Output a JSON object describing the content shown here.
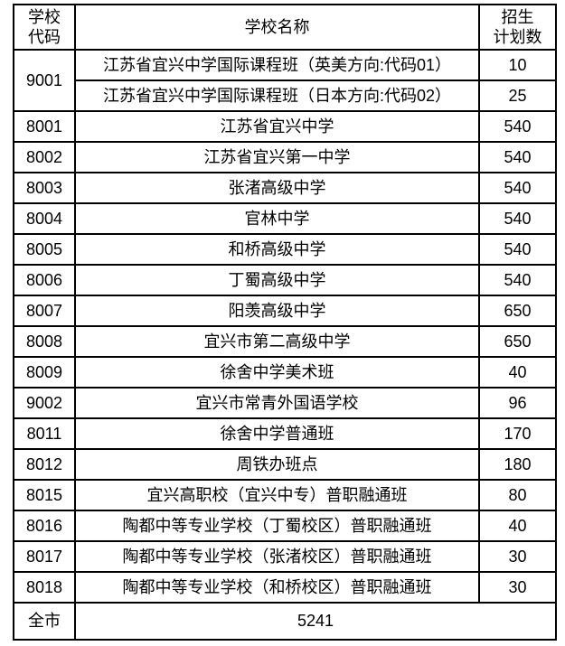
{
  "page": {
    "background_color": "#ffffff",
    "border_color": "#000000",
    "text_color": "#000000"
  },
  "table": {
    "header": {
      "code_lines": [
        "学校",
        "代码"
      ],
      "name": "学校名称",
      "plan_lines": [
        "招生",
        "计划数"
      ]
    },
    "rows": [
      {
        "code": "9001",
        "name": "江苏省宜兴中学国际课程班（英美方向:代码01）",
        "plan": "10"
      },
      {
        "name": "江苏省宜兴中学国际课程班（日本方向:代码02）",
        "plan": "25"
      },
      {
        "code": "8001",
        "name": "江苏省宜兴中学",
        "plan": "540"
      },
      {
        "code": "8002",
        "name": "江苏省宜兴第一中学",
        "plan": "540"
      },
      {
        "code": "8003",
        "name": "张渚高级中学",
        "plan": "540"
      },
      {
        "code": "8004",
        "name": "官林中学",
        "plan": "540"
      },
      {
        "code": "8005",
        "name": "和桥高级中学",
        "plan": "540"
      },
      {
        "code": "8006",
        "name": "丁蜀高级中学",
        "plan": "540"
      },
      {
        "code": "8007",
        "name": "阳羡高级中学",
        "plan": "650"
      },
      {
        "code": "8008",
        "name": "宜兴市第二高级中学",
        "plan": "650"
      },
      {
        "code": "8009",
        "name": "徐舍中学美术班",
        "plan": "40"
      },
      {
        "code": "9002",
        "name": "宜兴市常青外国语学校",
        "plan": "96"
      },
      {
        "code": "8011",
        "name": "徐舍中学普通班",
        "plan": "170"
      },
      {
        "code": "8012",
        "name": "周铁办班点",
        "plan": "180"
      },
      {
        "code": "8015",
        "name": "宜兴高职校（宜兴中专）普职融通班",
        "plan": "80"
      },
      {
        "code": "8016",
        "name": "陶都中等专业学校（丁蜀校区）普职融通班",
        "plan": "40"
      },
      {
        "code": "8017",
        "name": "陶都中等专业学校（张渚校区）普职融通班",
        "plan": "30"
      },
      {
        "code": "8018",
        "name": "陶都中等专业学校（和桥校区）普职融通班",
        "plan": "30"
      }
    ],
    "footer": {
      "label": "全市",
      "total": "5241"
    }
  }
}
